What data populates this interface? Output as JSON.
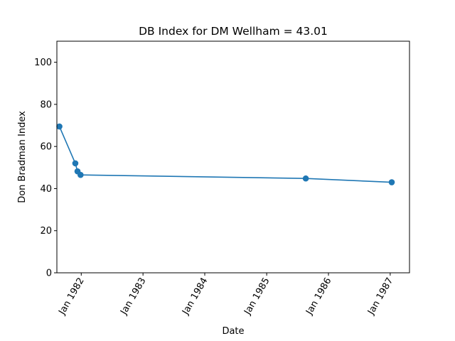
{
  "chart_data": {
    "type": "line",
    "title": "DB Index for DM Wellham = 43.01",
    "xlabel": "Date",
    "ylabel": "Don Bradman Index",
    "series_color": "#1f77b4",
    "x_axis_type": "date",
    "xlim": [
      "1981-08-10",
      "1987-04-25"
    ],
    "ylim": [
      0,
      110
    ],
    "x_ticks": [
      {
        "date": "1982-01-01",
        "label": "Jan 1982"
      },
      {
        "date": "1983-01-01",
        "label": "Jan 1983"
      },
      {
        "date": "1984-01-01",
        "label": "Jan 1984"
      },
      {
        "date": "1985-01-01",
        "label": "Jan 1985"
      },
      {
        "date": "1986-01-01",
        "label": "Jan 1986"
      },
      {
        "date": "1987-01-01",
        "label": "Jan 1987"
      }
    ],
    "y_ticks": [
      0,
      20,
      40,
      60,
      80,
      100
    ],
    "points": [
      {
        "x": "1981-08-25",
        "y": 69.5
      },
      {
        "x": "1981-11-27",
        "y": 52.0
      },
      {
        "x": "1981-12-10",
        "y": 48.2
      },
      {
        "x": "1981-12-28",
        "y": 46.5
      },
      {
        "x": "1985-08-20",
        "y": 44.8
      },
      {
        "x": "1987-01-10",
        "y": 43.01
      }
    ],
    "grid": false,
    "legend": "none"
  }
}
